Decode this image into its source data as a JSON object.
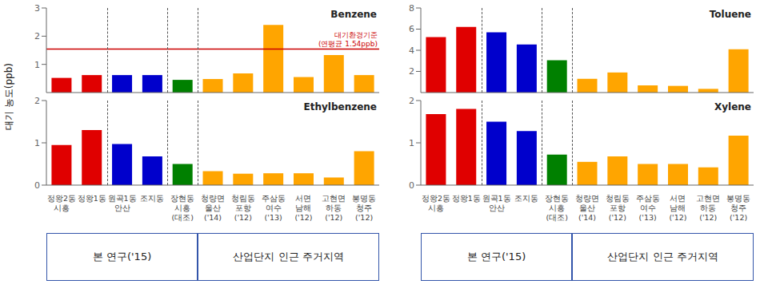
{
  "chart_data": [
    {
      "type": "bar",
      "title": "Benzene",
      "ylabel": "대기 농도(ppb)",
      "categories": [
        "정왕2동\n시흥",
        "정왕1동",
        "원곡1동\n안산",
        "조지동",
        "장현동\n시흥\n(대조)",
        "청량면\n울산\n('14)",
        "청림동\n포항\n('12)",
        "주삼동\n여수\n('13)",
        "서면\n남해\n('12)",
        "고현면\n하동\n('12)",
        "봉명동\n청주\n('12)"
      ],
      "values": [
        0.52,
        0.62,
        0.62,
        0.62,
        0.45,
        0.48,
        0.68,
        2.4,
        0.55,
        1.33,
        0.62
      ],
      "colors": [
        "#e00000",
        "#e00000",
        "#0000cc",
        "#0000cc",
        "#008000",
        "#FFA500",
        "#FFA500",
        "#FFA500",
        "#FFA500",
        "#FFA500",
        "#FFA500"
      ],
      "ylim": [
        0,
        3
      ],
      "yticks": [
        0,
        1,
        2,
        3
      ],
      "tick_labels": "y",
      "hline": {
        "value": 1.54,
        "color": "#cc0000",
        "labels": [
          "대기환경기준",
          "(연평균 1.54ppb)"
        ]
      }
    },
    {
      "type": "bar",
      "title": "Ethylbenzene",
      "categories": [
        "정왕2동\n시흥",
        "정왕1동",
        "원곡1동\n안산",
        "조지동",
        "장현동\n시흥\n(대조)",
        "청량면\n울산\n('14)",
        "청림동\n포항\n('12)",
        "주삼동\n여수\n('13)",
        "서면\n남해\n('12)",
        "고현면\n하동\n('12)",
        "봉명동\n청주\n('12)"
      ],
      "values": [
        0.95,
        1.3,
        0.97,
        0.68,
        0.5,
        0.33,
        0.27,
        0.28,
        0.28,
        0.18,
        0.8
      ],
      "colors": [
        "#e00000",
        "#e00000",
        "#0000cc",
        "#0000cc",
        "#008000",
        "#FFA500",
        "#FFA500",
        "#FFA500",
        "#FFA500",
        "#FFA500",
        "#FFA500"
      ],
      "ylim": [
        0,
        2
      ],
      "yticks": [
        0,
        1,
        2
      ],
      "groups": [
        {
          "label": "본 연구('15)",
          "start": 0,
          "end": 4,
          "color": "#3355aa"
        },
        {
          "label": "산업단지 인근 주거지역",
          "start": 5,
          "end": 10,
          "color": "#3355aa"
        }
      ]
    },
    {
      "type": "bar",
      "title": "Toluene",
      "categories": [
        "정왕2동\n시흥",
        "정왕1동",
        "원곡1동\n안산",
        "조지동",
        "장현동\n시흥\n(대조)",
        "청량면\n울산\n('14)",
        "청림동\n포항\n('12)",
        "주삼동\n여수\n('13)",
        "서면\n남해\n('12)",
        "고현면\n하동\n('12)",
        "봉명동\n청주\n('12)"
      ],
      "values": [
        5.25,
        6.2,
        5.7,
        4.55,
        3.05,
        1.3,
        1.9,
        0.68,
        0.63,
        0.35,
        4.1
      ],
      "colors": [
        "#e00000",
        "#e00000",
        "#0000cc",
        "#0000cc",
        "#008000",
        "#FFA500",
        "#FFA500",
        "#FFA500",
        "#FFA500",
        "#FFA500",
        "#FFA500"
      ],
      "ylim": [
        0,
        8
      ],
      "yticks": [
        0,
        2,
        4,
        6,
        8
      ],
      "tick_labels": "y"
    },
    {
      "type": "bar",
      "title": "Xylene",
      "categories": [
        "정왕2동\n시흥",
        "정왕1동",
        "원곡1동\n안산",
        "조지동",
        "장현동\n시흥\n(대조)",
        "청량면\n울산\n('14)",
        "청림동\n포항\n('12)",
        "주삼동\n여수\n('13)",
        "서면\n남해\n('12)",
        "고현면\n하동\n('12)",
        "봉명동\n청주\n('12)"
      ],
      "values": [
        1.68,
        1.8,
        1.5,
        1.28,
        0.72,
        0.55,
        0.68,
        0.5,
        0.5,
        0.42,
        1.17
      ],
      "colors": [
        "#e00000",
        "#e00000",
        "#0000cc",
        "#0000cc",
        "#008000",
        "#FFA500",
        "#FFA500",
        "#FFA500",
        "#FFA500",
        "#FFA500",
        "#FFA500"
      ],
      "ylim": [
        0,
        2
      ],
      "yticks": [
        0,
        1,
        2
      ],
      "groups": [
        {
          "label": "본 연구('15)",
          "start": 0,
          "end": 4,
          "color": "#3355aa"
        },
        {
          "label": "산업단지 인근 주거지역",
          "start": 5,
          "end": 10,
          "color": "#3355aa"
        }
      ]
    }
  ]
}
